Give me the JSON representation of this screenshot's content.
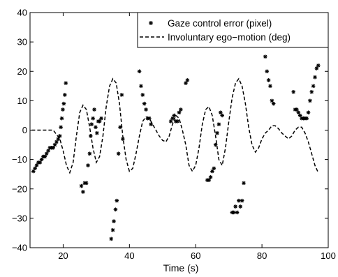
{
  "chart_data": {
    "type": "line",
    "title": "",
    "xlabel": "Time (s)",
    "ylabel": "",
    "xlim": [
      10,
      100
    ],
    "ylim": [
      -40,
      40
    ],
    "xticks": [
      20,
      40,
      60,
      80,
      100
    ],
    "yticks": [
      -40,
      -30,
      -20,
      -10,
      0,
      10,
      20,
      30,
      40
    ],
    "grid": false,
    "legend_position": "top-right",
    "series": [
      {
        "name": "Gaze control error (pixel)",
        "style": "asterisk-markers",
        "color": "#000000",
        "points": [
          [
            11.0,
            -14
          ],
          [
            11.5,
            -13
          ],
          [
            12.0,
            -12
          ],
          [
            12.5,
            -11
          ],
          [
            13.0,
            -11
          ],
          [
            13.5,
            -10
          ],
          [
            14.0,
            -9
          ],
          [
            14.5,
            -9
          ],
          [
            15.0,
            -8
          ],
          [
            15.5,
            -7
          ],
          [
            16.0,
            -6
          ],
          [
            16.5,
            -6
          ],
          [
            17.0,
            -6
          ],
          [
            17.5,
            -5
          ],
          [
            18.0,
            -4
          ],
          [
            18.5,
            -3
          ],
          [
            19.0,
            -2
          ],
          [
            19.3,
            1
          ],
          [
            19.6,
            4
          ],
          [
            19.9,
            7
          ],
          [
            20.2,
            9
          ],
          [
            20.5,
            12
          ],
          [
            20.8,
            16
          ],
          [
            25.5,
            -19
          ],
          [
            26.0,
            -21
          ],
          [
            26.5,
            -18
          ],
          [
            27.0,
            -18
          ],
          [
            27.5,
            -12
          ],
          [
            28.0,
            -8
          ],
          [
            28.3,
            -2
          ],
          [
            28.6,
            2
          ],
          [
            29.0,
            4
          ],
          [
            29.4,
            7
          ],
          [
            29.8,
            1
          ],
          [
            30.2,
            -1
          ],
          [
            30.6,
            3
          ],
          [
            31.0,
            3
          ],
          [
            31.5,
            4
          ],
          [
            34.5,
            -37
          ],
          [
            35.0,
            -34
          ],
          [
            35.3,
            -31
          ],
          [
            35.8,
            -27
          ],
          [
            36.2,
            -24
          ],
          [
            36.7,
            -8
          ],
          [
            37.2,
            1
          ],
          [
            37.7,
            12
          ],
          [
            38.0,
            -3
          ],
          [
            43.0,
            20
          ],
          [
            43.5,
            15
          ],
          [
            44.0,
            12
          ],
          [
            44.5,
            9
          ],
          [
            45.0,
            7
          ],
          [
            45.5,
            4
          ],
          [
            46.0,
            4
          ],
          [
            46.5,
            2
          ],
          [
            52.5,
            3
          ],
          [
            53.0,
            4
          ],
          [
            53.5,
            5
          ],
          [
            54.0,
            3
          ],
          [
            54.5,
            3
          ],
          [
            55.0,
            6
          ],
          [
            55.5,
            7
          ],
          [
            57.0,
            16
          ],
          [
            57.5,
            17
          ],
          [
            63.5,
            -17
          ],
          [
            64.0,
            -17
          ],
          [
            64.5,
            -16
          ],
          [
            65.0,
            -14
          ],
          [
            65.5,
            -13
          ],
          [
            66.0,
            -5
          ],
          [
            66.5,
            -1
          ],
          [
            67.0,
            2
          ],
          [
            67.5,
            6
          ],
          [
            68.0,
            5
          ],
          [
            71.0,
            -28
          ],
          [
            71.5,
            -28
          ],
          [
            72.0,
            -26
          ],
          [
            72.5,
            -28
          ],
          [
            73.0,
            -24
          ],
          [
            73.5,
            -26
          ],
          [
            74.0,
            -24
          ],
          [
            74.5,
            -18
          ],
          [
            81.0,
            25
          ],
          [
            81.5,
            20
          ],
          [
            82.0,
            17
          ],
          [
            82.5,
            15
          ],
          [
            83.0,
            10
          ],
          [
            83.5,
            9
          ],
          [
            89.5,
            13
          ],
          [
            90.0,
            7
          ],
          [
            90.5,
            7
          ],
          [
            91.0,
            6
          ],
          [
            91.5,
            5
          ],
          [
            92.0,
            4
          ],
          [
            92.5,
            4
          ],
          [
            93.0,
            4
          ],
          [
            93.5,
            4
          ],
          [
            94.0,
            6
          ],
          [
            94.5,
            10
          ],
          [
            95.0,
            13
          ],
          [
            95.5,
            15
          ],
          [
            96.0,
            18
          ],
          [
            96.5,
            21
          ],
          [
            97.0,
            22
          ]
        ]
      },
      {
        "name": "Involuntary ego−motion (deg)",
        "style": "dashed-line",
        "color": "#000000",
        "points": [
          [
            10.5,
            0
          ],
          [
            14,
            0
          ],
          [
            17,
            0
          ],
          [
            18,
            -1.5
          ],
          [
            19,
            -3
          ],
          [
            20,
            -7
          ],
          [
            21,
            -12
          ],
          [
            22,
            -14.5
          ],
          [
            23,
            -11
          ],
          [
            24,
            -2
          ],
          [
            25,
            6
          ],
          [
            26,
            8.5
          ],
          [
            27,
            7
          ],
          [
            28,
            1
          ],
          [
            29,
            -6
          ],
          [
            30,
            -11
          ],
          [
            31,
            -9
          ],
          [
            32,
            -2
          ],
          [
            33,
            8
          ],
          [
            34,
            15
          ],
          [
            35,
            17.5
          ],
          [
            36,
            16
          ],
          [
            37,
            9
          ],
          [
            38,
            -2
          ],
          [
            39,
            -10
          ],
          [
            40,
            -14
          ],
          [
            41,
            -13
          ],
          [
            42,
            -8
          ],
          [
            43,
            -2
          ],
          [
            44,
            3
          ],
          [
            45,
            4.5
          ],
          [
            46,
            4
          ],
          [
            47,
            2
          ],
          [
            48,
            0
          ],
          [
            49,
            -2
          ],
          [
            50,
            -3.5
          ],
          [
            51,
            -4
          ],
          [
            52,
            -2
          ],
          [
            53,
            2
          ],
          [
            54,
            5
          ],
          [
            55,
            4
          ],
          [
            56,
            0
          ],
          [
            57,
            -5
          ],
          [
            58,
            -12
          ],
          [
            59,
            -14
          ],
          [
            60,
            -12
          ],
          [
            61,
            -6
          ],
          [
            62,
            2
          ],
          [
            63,
            7
          ],
          [
            64,
            8
          ],
          [
            65,
            5
          ],
          [
            66,
            -2
          ],
          [
            67,
            -10
          ],
          [
            68,
            -12
          ],
          [
            69,
            -6
          ],
          [
            70,
            3
          ],
          [
            71,
            11
          ],
          [
            72,
            16
          ],
          [
            73,
            17.5
          ],
          [
            74,
            15
          ],
          [
            75,
            9
          ],
          [
            76,
            1
          ],
          [
            77,
            -5
          ],
          [
            78,
            -7.5
          ],
          [
            79,
            -6
          ],
          [
            80,
            -3
          ],
          [
            81,
            -1
          ],
          [
            82,
            0
          ],
          [
            83,
            1.5
          ],
          [
            84,
            1.5
          ],
          [
            85,
            0.5
          ],
          [
            86,
            -1
          ],
          [
            87,
            -2
          ],
          [
            88,
            -3
          ],
          [
            89,
            -2
          ],
          [
            90,
            0
          ],
          [
            91,
            1
          ],
          [
            92,
            1
          ],
          [
            93,
            -1
          ],
          [
            94,
            -4
          ],
          [
            95,
            -8
          ],
          [
            96,
            -12
          ],
          [
            97,
            -14.5
          ]
        ]
      }
    ]
  }
}
